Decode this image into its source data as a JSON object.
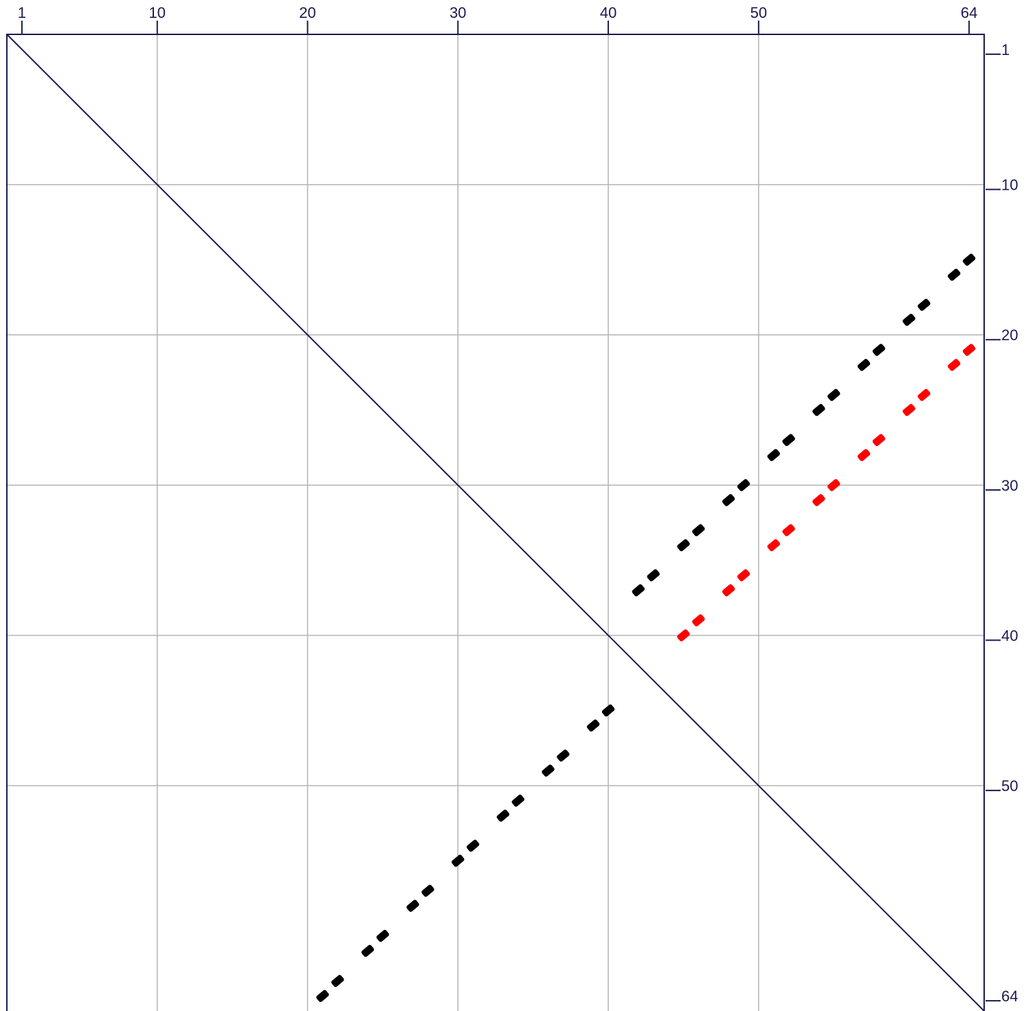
{
  "chart_data": {
    "type": "scatter",
    "title": "",
    "xlabel": "",
    "ylabel": "",
    "xlim": [
      0,
      65
    ],
    "ylim": [
      0,
      65
    ],
    "x_tick_labels": [
      "1",
      "10",
      "20",
      "30",
      "40",
      "50",
      "64"
    ],
    "y_tick_labels": [
      "1",
      "10",
      "20",
      "30",
      "40",
      "50",
      "64"
    ],
    "grid": true,
    "reference_line": {
      "from": [
        0,
        0
      ],
      "to": [
        65,
        65
      ]
    },
    "series": [
      {
        "color": "#000000",
        "points": [
          [
            42,
            37
          ],
          [
            43,
            36
          ],
          [
            45,
            34
          ],
          [
            46,
            33
          ],
          [
            48,
            31
          ],
          [
            49,
            30
          ],
          [
            51,
            28
          ],
          [
            52,
            27
          ],
          [
            54,
            25
          ],
          [
            55,
            24
          ],
          [
            57,
            22
          ],
          [
            58,
            21
          ],
          [
            60,
            19
          ],
          [
            61,
            18
          ],
          [
            63,
            16
          ],
          [
            64,
            15
          ],
          [
            21,
            64
          ],
          [
            22,
            63
          ],
          [
            24,
            61
          ],
          [
            25,
            60
          ],
          [
            27,
            58
          ],
          [
            28,
            57
          ],
          [
            30,
            55
          ],
          [
            31,
            54
          ],
          [
            33,
            52
          ],
          [
            34,
            51
          ],
          [
            36,
            49
          ],
          [
            37,
            48
          ],
          [
            39,
            46
          ],
          [
            40,
            45
          ]
        ]
      },
      {
        "color": "#ff0000",
        "points": [
          [
            45,
            40
          ],
          [
            46,
            39
          ],
          [
            48,
            37
          ],
          [
            49,
            36
          ],
          [
            51,
            34
          ],
          [
            52,
            33
          ],
          [
            54,
            31
          ],
          [
            55,
            30
          ],
          [
            57,
            28
          ],
          [
            58,
            27
          ],
          [
            60,
            25
          ],
          [
            61,
            24
          ],
          [
            63,
            22
          ],
          [
            64,
            21
          ]
        ]
      }
    ]
  }
}
